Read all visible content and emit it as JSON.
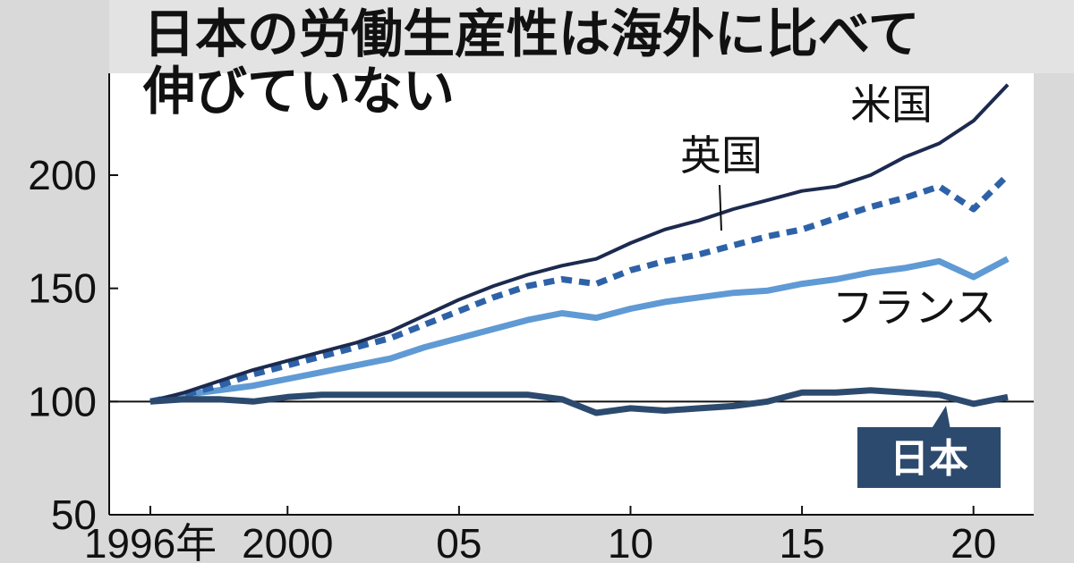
{
  "title": {
    "line1": "日本の労働生産性は海外に比べて",
    "line2": "伸びていない"
  },
  "chart_data": {
    "type": "line",
    "title": "日本の労働生産性は海外に比べて伸びていない",
    "xlabel": "",
    "ylabel": "",
    "xlim": [
      1996,
      2021
    ],
    "ylim": [
      50,
      245
    ],
    "x": [
      1996,
      1997,
      1998,
      1999,
      2000,
      2001,
      2002,
      2003,
      2004,
      2005,
      2006,
      2007,
      2008,
      2009,
      2010,
      2011,
      2012,
      2013,
      2014,
      2015,
      2016,
      2017,
      2018,
      2019,
      2020,
      2021
    ],
    "x_ticks": [
      {
        "value": 1996,
        "label": "1996年"
      },
      {
        "value": 2000,
        "label": "2000"
      },
      {
        "value": 2005,
        "label": "05"
      },
      {
        "value": 2010,
        "label": "10"
      },
      {
        "value": 2015,
        "label": "15"
      },
      {
        "value": 2020,
        "label": "20"
      }
    ],
    "y_ticks": [
      {
        "value": 50,
        "label": "50"
      },
      {
        "value": 100,
        "label": "100"
      },
      {
        "value": 150,
        "label": "150"
      },
      {
        "value": 200,
        "label": "200"
      }
    ],
    "reference_line": 100,
    "series": [
      {
        "name": "米国",
        "color": "#1c2a4f",
        "style": "solid-thin",
        "values": [
          100,
          104,
          109,
          114,
          118,
          122,
          126,
          131,
          138,
          145,
          151,
          156,
          160,
          163,
          170,
          176,
          180,
          185,
          189,
          193,
          195,
          200,
          208,
          214,
          224,
          240
        ]
      },
      {
        "name": "英国",
        "color": "#2e62a8",
        "style": "dotted",
        "values": [
          100,
          103,
          107,
          112,
          116,
          120,
          124,
          128,
          134,
          140,
          146,
          151,
          154,
          152,
          158,
          162,
          165,
          169,
          173,
          176,
          181,
          186,
          190,
          195,
          185,
          200
        ]
      },
      {
        "name": "フランス",
        "color": "#5f9ad4",
        "style": "solid-thick",
        "values": [
          100,
          103,
          105,
          107,
          110,
          113,
          116,
          119,
          124,
          128,
          132,
          136,
          139,
          137,
          141,
          144,
          146,
          148,
          149,
          152,
          154,
          157,
          159,
          162,
          155,
          163
        ]
      },
      {
        "name": "日本",
        "color": "#2c4a6e",
        "style": "solid-thick",
        "values": [
          100,
          101,
          101,
          100,
          102,
          103,
          103,
          103,
          103,
          103,
          103,
          103,
          101,
          95,
          97,
          96,
          97,
          98,
          100,
          104,
          104,
          105,
          104,
          103,
          99,
          102
        ]
      }
    ]
  }
}
